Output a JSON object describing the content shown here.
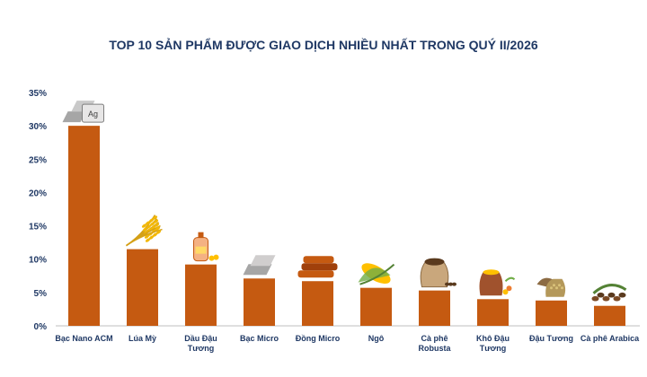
{
  "colors": {
    "bar": "#C55A11",
    "title": "#1F3864",
    "axis_text": "#1F3864",
    "grid": "#D9D9D9"
  },
  "chart_data": {
    "type": "bar",
    "title": "TOP 10 SẢN PHẨM ĐƯỢC GIAO DỊCH NHIỀU NHẤT TRONG QUÝ II/2026",
    "xlabel": "",
    "ylabel": "",
    "ylim": [
      0,
      35
    ],
    "yticks": [
      "0%",
      "5%",
      "10%",
      "15%",
      "20%",
      "25%",
      "30%",
      "35%"
    ],
    "grid": false,
    "categories": [
      [
        "Bạc Nano ACM"
      ],
      [
        "Lúa Mỳ"
      ],
      [
        "Dầu Đậu",
        "Tương"
      ],
      [
        "Bạc Micro"
      ],
      [
        "Đồng Micro"
      ],
      [
        "Ngô"
      ],
      [
        "Cà phê",
        "Robusta"
      ],
      [
        "Khô Đậu",
        "Tương"
      ],
      [
        "Đậu Tương"
      ],
      [
        "Cà phê Arabica"
      ]
    ],
    "icons": [
      "silver-ingot-icon",
      "wheat-icon",
      "soybean-oil-icon",
      "silver-bar-icon",
      "copper-bar-icon",
      "corn-icon",
      "coffee-sack-icon",
      "soybean-meal-icon",
      "soybean-sack-icon",
      "coffee-beans-icon"
    ],
    "values": [
      30,
      11.5,
      9.2,
      7.1,
      6.7,
      5.7,
      5.3,
      4.0,
      3.8,
      3.0
    ]
  }
}
